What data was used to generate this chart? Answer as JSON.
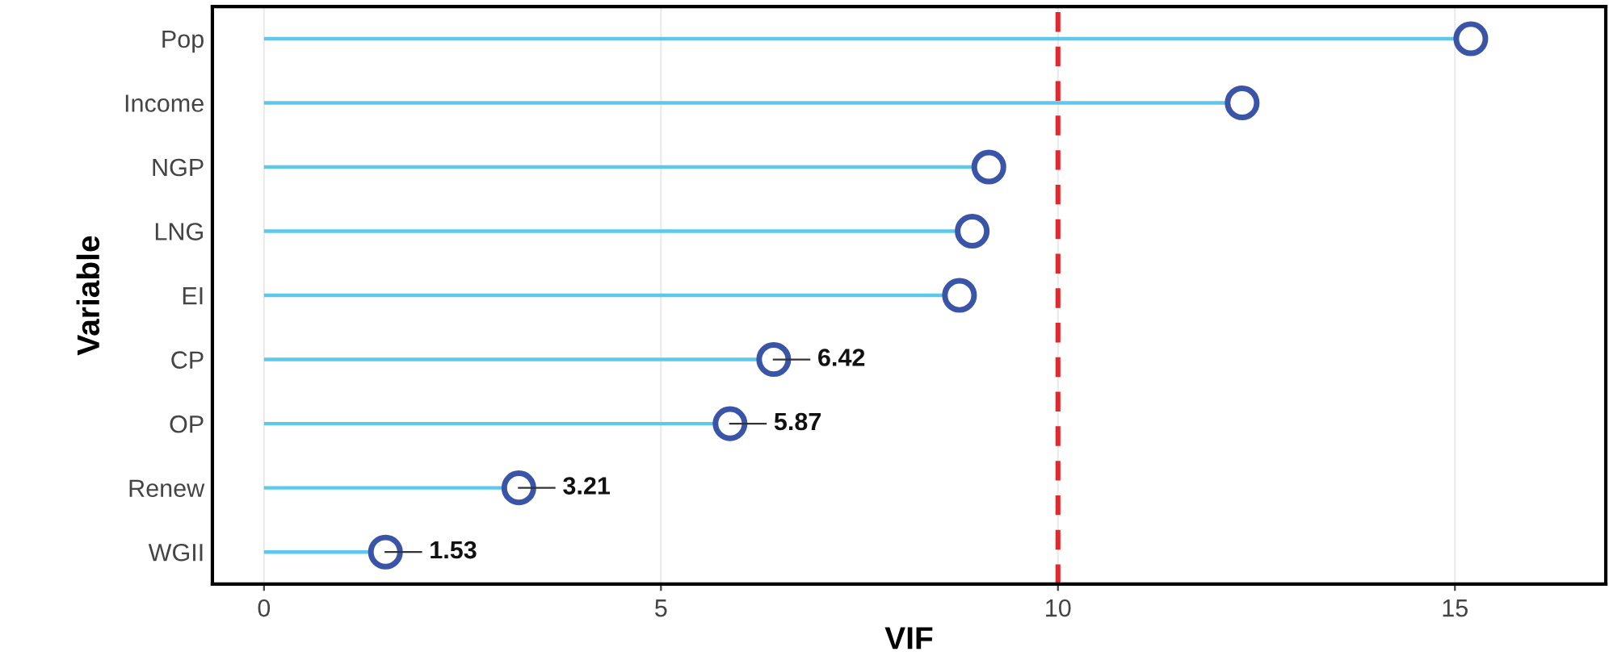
{
  "chart_data": {
    "type": "lollipop",
    "orientation": "horizontal",
    "xlabel": "VIF",
    "ylabel": "Variable",
    "categories": [
      "Pop",
      "Income",
      "NGP",
      "LNG",
      "EI",
      "CP",
      "OP",
      "Renew",
      "WGII"
    ],
    "series": [
      {
        "color": "#3a55a8",
        "values": [
          15.2,
          12.32,
          9.13,
          8.92,
          8.76,
          6.42,
          5.87,
          3.21,
          1.53
        ],
        "value_labels": [
          null,
          null,
          null,
          null,
          null,
          "6.42",
          "5.87",
          "3.21",
          "1.53"
        ]
      }
    ],
    "xlim": [
      -0.65,
      16.9
    ],
    "xticks": [
      0,
      5,
      10,
      15
    ],
    "grid": "x",
    "marker": "circle",
    "ref_lines": [
      {
        "axis": "x",
        "value": 10,
        "color": "#e8262b",
        "line_style": "dashed"
      }
    ]
  }
}
